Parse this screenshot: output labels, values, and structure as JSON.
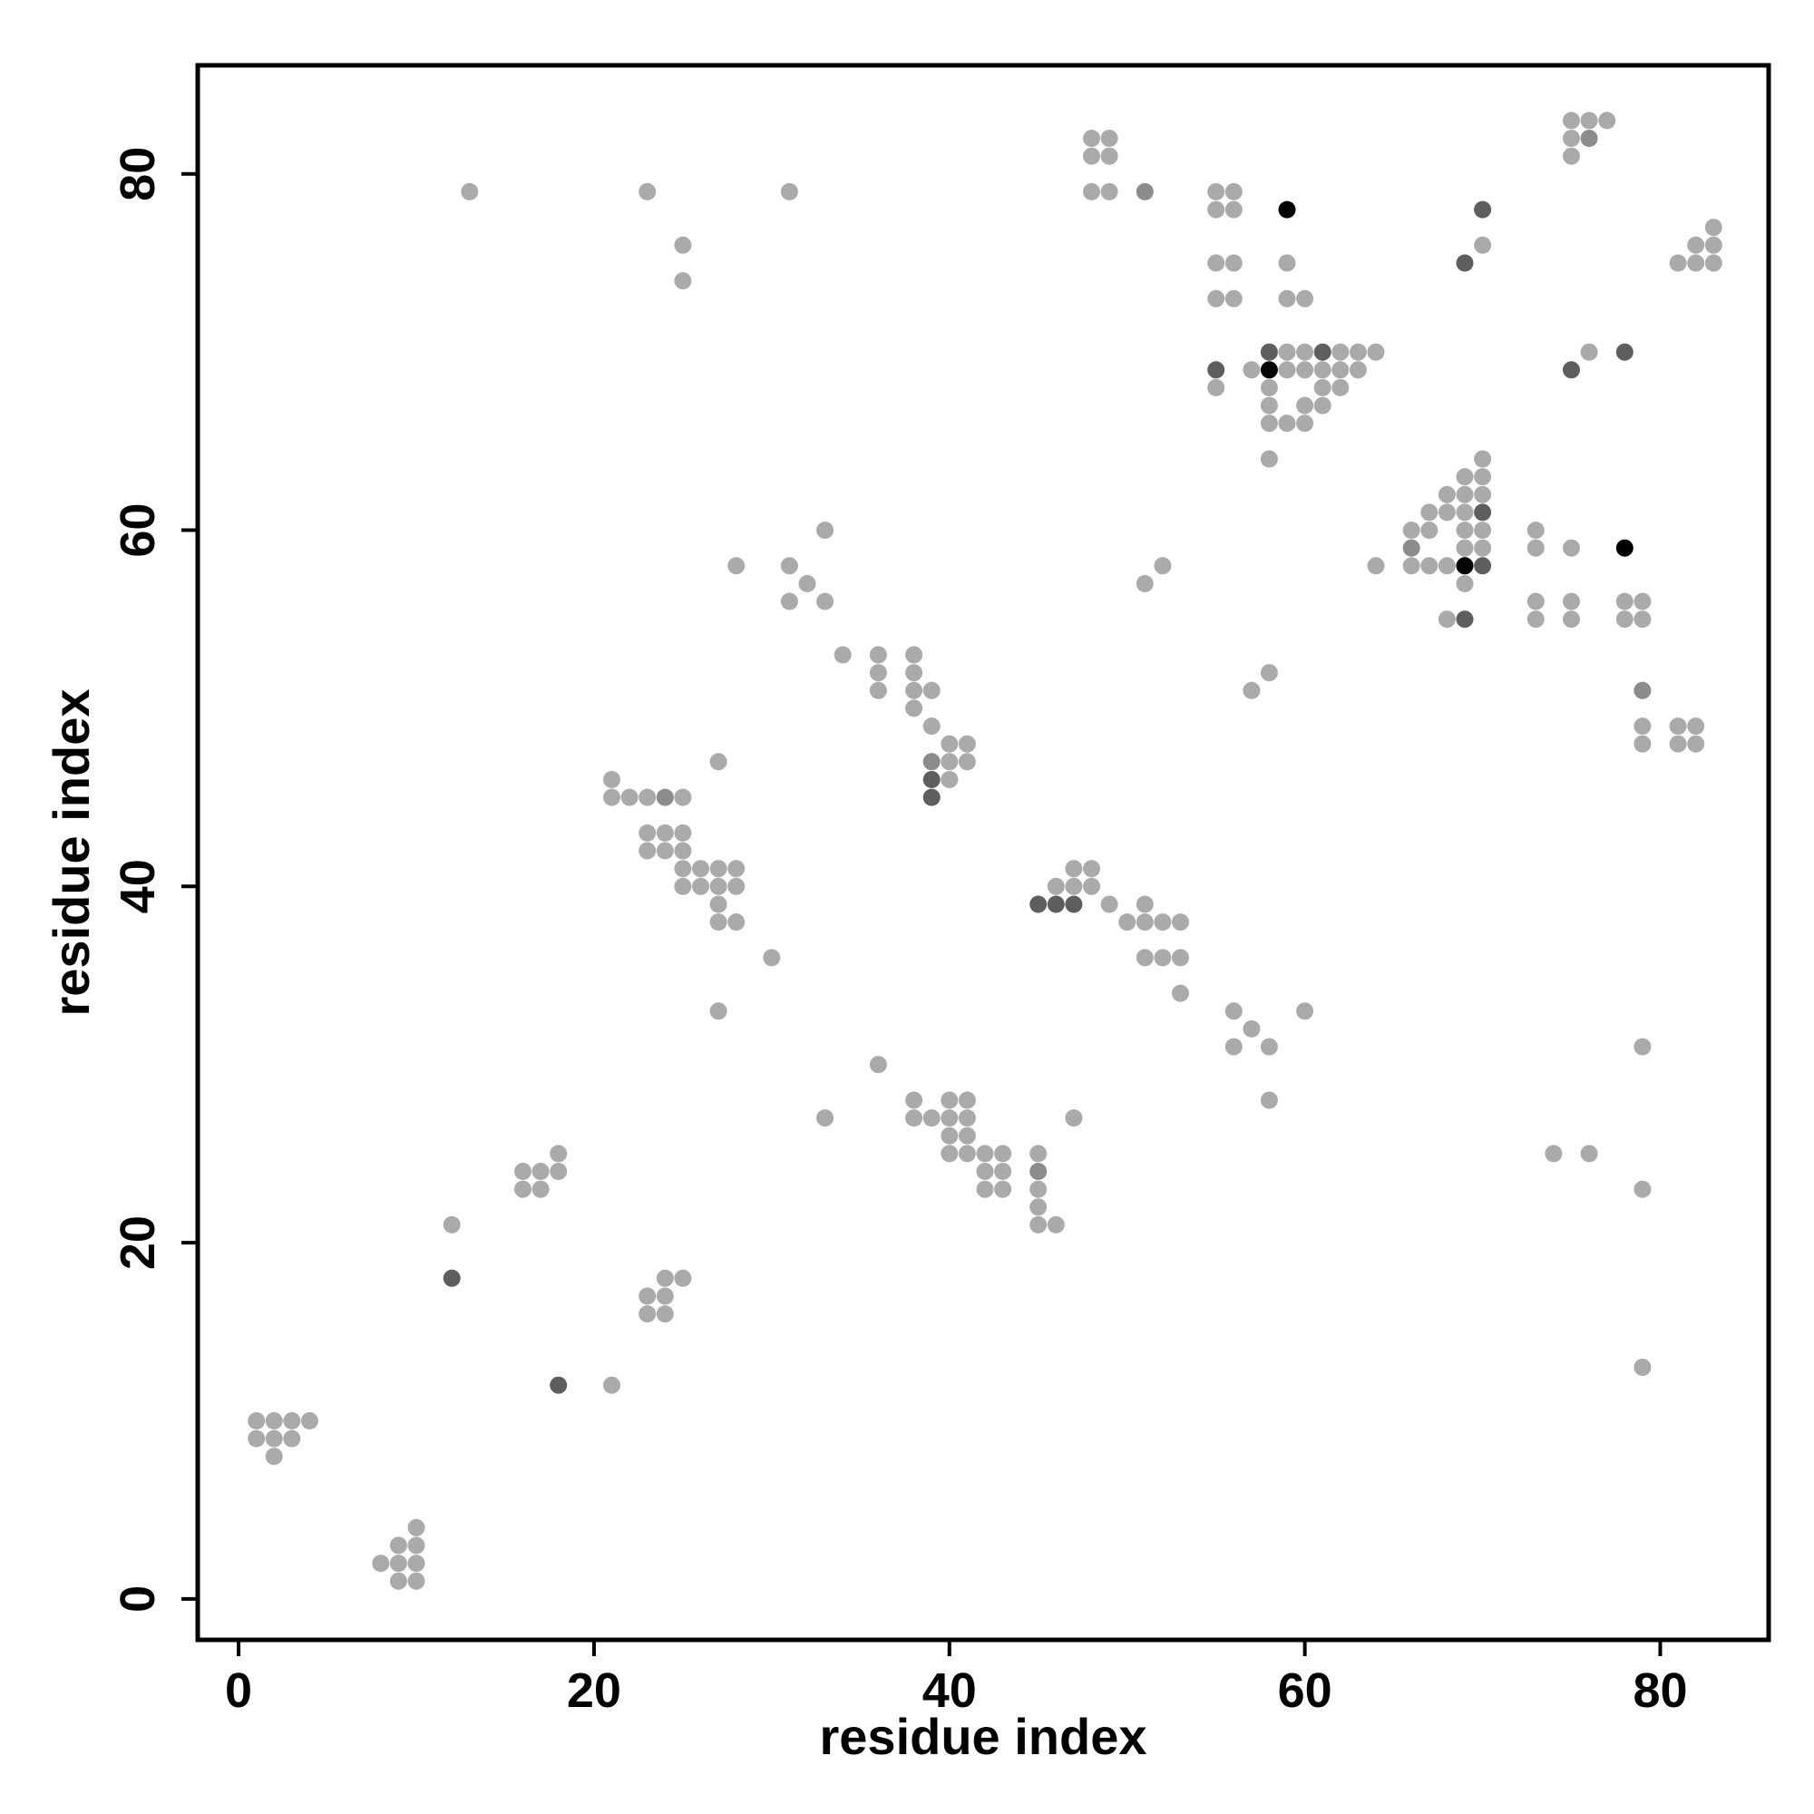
{
  "chart_data": {
    "type": "scatter",
    "title": "",
    "xlabel": "residue index",
    "ylabel": "residue index",
    "xlim": [
      -2.3,
      86.1
    ],
    "ylim": [
      -2.3,
      86.1
    ],
    "x_ticks": [
      0,
      20,
      40,
      60,
      80
    ],
    "y_ticks": [
      0,
      20,
      40,
      60,
      80
    ],
    "grid": false,
    "legend": "none",
    "colors": {
      "light": "#aaaaaa",
      "medium": "#8c8c8c",
      "dark": "#5e5e5e",
      "black": "#000000"
    },
    "series": [
      {
        "color_level": "light",
        "points": [
          [
            8,
            2
          ],
          [
            9,
            2
          ],
          [
            9,
            3
          ],
          [
            9,
            1
          ],
          [
            10,
            1
          ],
          [
            10,
            2
          ],
          [
            10,
            3
          ],
          [
            10,
            4
          ],
          [
            1,
            9
          ],
          [
            1,
            10
          ],
          [
            2,
            8
          ],
          [
            2,
            9
          ],
          [
            2,
            10
          ],
          [
            3,
            9
          ],
          [
            3,
            10
          ],
          [
            4,
            10
          ],
          [
            12,
            21
          ],
          [
            16,
            23
          ],
          [
            16,
            24
          ],
          [
            17,
            23
          ],
          [
            17,
            24
          ],
          [
            18,
            24
          ],
          [
            18,
            25
          ],
          [
            21,
            12
          ],
          [
            23,
            16
          ],
          [
            23,
            17
          ],
          [
            24,
            16
          ],
          [
            24,
            17
          ],
          [
            24,
            18
          ],
          [
            25,
            18
          ],
          [
            13,
            79
          ],
          [
            23,
            79
          ],
          [
            25,
            76
          ],
          [
            25,
            74
          ],
          [
            31,
            79
          ],
          [
            21,
            45
          ],
          [
            21,
            46
          ],
          [
            22,
            45
          ],
          [
            23,
            45
          ],
          [
            25,
            45
          ],
          [
            23,
            43
          ],
          [
            23,
            42
          ],
          [
            24,
            43
          ],
          [
            24,
            42
          ],
          [
            25,
            43
          ],
          [
            25,
            42
          ],
          [
            25,
            41
          ],
          [
            25,
            40
          ],
          [
            26,
            41
          ],
          [
            26,
            40
          ],
          [
            27,
            41
          ],
          [
            27,
            40
          ],
          [
            27,
            39
          ],
          [
            27,
            38
          ],
          [
            27,
            47
          ],
          [
            28,
            41
          ],
          [
            28,
            40
          ],
          [
            28,
            38
          ],
          [
            27,
            33
          ],
          [
            30,
            36
          ],
          [
            28,
            58
          ],
          [
            31,
            58
          ],
          [
            31,
            56
          ],
          [
            32,
            57
          ],
          [
            33,
            56
          ],
          [
            33,
            60
          ],
          [
            34,
            53
          ],
          [
            33,
            27
          ],
          [
            36,
            53
          ],
          [
            36,
            52
          ],
          [
            36,
            51
          ],
          [
            38,
            53
          ],
          [
            38,
            52
          ],
          [
            38,
            51
          ],
          [
            38,
            50
          ],
          [
            39,
            51
          ],
          [
            39,
            49
          ],
          [
            40,
            48
          ],
          [
            40,
            47
          ],
          [
            40,
            46
          ],
          [
            41,
            48
          ],
          [
            41,
            47
          ],
          [
            36,
            30
          ],
          [
            38,
            28
          ],
          [
            38,
            27
          ],
          [
            39,
            27
          ],
          [
            40,
            28
          ],
          [
            40,
            27
          ],
          [
            40,
            26
          ],
          [
            40,
            25
          ],
          [
            41,
            28
          ],
          [
            41,
            27
          ],
          [
            41,
            26
          ],
          [
            41,
            25
          ],
          [
            42,
            25
          ],
          [
            42,
            24
          ],
          [
            42,
            23
          ],
          [
            43,
            25
          ],
          [
            43,
            24
          ],
          [
            43,
            23
          ],
          [
            45,
            25
          ],
          [
            45,
            23
          ],
          [
            45,
            22
          ],
          [
            45,
            21
          ],
          [
            46,
            21
          ],
          [
            47,
            27
          ],
          [
            46,
            40
          ],
          [
            47,
            41
          ],
          [
            47,
            40
          ],
          [
            48,
            41
          ],
          [
            48,
            40
          ],
          [
            49,
            39
          ],
          [
            50,
            38
          ],
          [
            51,
            39
          ],
          [
            51,
            38
          ],
          [
            51,
            36
          ],
          [
            52,
            38
          ],
          [
            52,
            36
          ],
          [
            53,
            38
          ],
          [
            53,
            36
          ],
          [
            53,
            34
          ],
          [
            56,
            33
          ],
          [
            56,
            31
          ],
          [
            57,
            32
          ],
          [
            58,
            31
          ],
          [
            58,
            28
          ],
          [
            60,
            33
          ],
          [
            57,
            51
          ],
          [
            58,
            52
          ],
          [
            51,
            57
          ],
          [
            52,
            58
          ],
          [
            48,
            82
          ],
          [
            49,
            82
          ],
          [
            48,
            81
          ],
          [
            49,
            81
          ],
          [
            48,
            79
          ],
          [
            49,
            79
          ],
          [
            55,
            79
          ],
          [
            56,
            79
          ],
          [
            55,
            78
          ],
          [
            56,
            78
          ],
          [
            55,
            75
          ],
          [
            56,
            75
          ],
          [
            55,
            73
          ],
          [
            56,
            73
          ],
          [
            55,
            68
          ],
          [
            57,
            69
          ],
          [
            58,
            68
          ],
          [
            58,
            67
          ],
          [
            58,
            66
          ],
          [
            58,
            64
          ],
          [
            59,
            75
          ],
          [
            59,
            73
          ],
          [
            59,
            70
          ],
          [
            59,
            69
          ],
          [
            59,
            66
          ],
          [
            60,
            73
          ],
          [
            60,
            70
          ],
          [
            60,
            69
          ],
          [
            60,
            67
          ],
          [
            60,
            66
          ],
          [
            61,
            69
          ],
          [
            61,
            68
          ],
          [
            61,
            67
          ],
          [
            62,
            70
          ],
          [
            62,
            69
          ],
          [
            62,
            68
          ],
          [
            63,
            70
          ],
          [
            63,
            69
          ],
          [
            64,
            70
          ],
          [
            64,
            58
          ],
          [
            66,
            60
          ],
          [
            66,
            58
          ],
          [
            67,
            61
          ],
          [
            67,
            60
          ],
          [
            67,
            58
          ],
          [
            68,
            62
          ],
          [
            68,
            61
          ],
          [
            68,
            58
          ],
          [
            68,
            55
          ],
          [
            69,
            63
          ],
          [
            69,
            62
          ],
          [
            69,
            61
          ],
          [
            69,
            60
          ],
          [
            69,
            59
          ],
          [
            69,
            57
          ],
          [
            70,
            64
          ],
          [
            70,
            63
          ],
          [
            70,
            62
          ],
          [
            70,
            60
          ],
          [
            70,
            59
          ],
          [
            70,
            76
          ],
          [
            73,
            60
          ],
          [
            73,
            59
          ],
          [
            73,
            56
          ],
          [
            73,
            55
          ],
          [
            75,
            59
          ],
          [
            75,
            56
          ],
          [
            75,
            55
          ],
          [
            76,
            70
          ],
          [
            78,
            56
          ],
          [
            78,
            55
          ],
          [
            79,
            56
          ],
          [
            79,
            55
          ],
          [
            79,
            49
          ],
          [
            79,
            48
          ],
          [
            81,
            49
          ],
          [
            81,
            48
          ],
          [
            82,
            49
          ],
          [
            82,
            48
          ],
          [
            75,
            83
          ],
          [
            76,
            83
          ],
          [
            77,
            83
          ],
          [
            75,
            82
          ],
          [
            75,
            81
          ],
          [
            81,
            75
          ],
          [
            82,
            76
          ],
          [
            82,
            75
          ],
          [
            83,
            77
          ],
          [
            83,
            76
          ],
          [
            83,
            75
          ],
          [
            74,
            25
          ],
          [
            76,
            25
          ],
          [
            79,
            31
          ],
          [
            79,
            23
          ],
          [
            79,
            13
          ]
        ]
      },
      {
        "color_level": "medium",
        "points": [
          [
            24,
            45
          ],
          [
            39,
            47
          ],
          [
            45,
            24
          ],
          [
            51,
            79
          ],
          [
            66,
            59
          ],
          [
            69,
            58
          ],
          [
            76,
            82
          ],
          [
            79,
            51
          ]
        ]
      },
      {
        "color_level": "dark",
        "points": [
          [
            12,
            18
          ],
          [
            18,
            12
          ],
          [
            39,
            46
          ],
          [
            39,
            45
          ],
          [
            45,
            39
          ],
          [
            46,
            39
          ],
          [
            47,
            39
          ],
          [
            55,
            69
          ],
          [
            58,
            70
          ],
          [
            61,
            70
          ],
          [
            69,
            75
          ],
          [
            70,
            78
          ],
          [
            70,
            61
          ],
          [
            70,
            58
          ],
          [
            69,
            55
          ],
          [
            75,
            69
          ],
          [
            78,
            70
          ]
        ]
      },
      {
        "color_level": "black",
        "points": [
          [
            59,
            78
          ],
          [
            58,
            69
          ],
          [
            69,
            58
          ],
          [
            78,
            59
          ]
        ]
      }
    ]
  }
}
